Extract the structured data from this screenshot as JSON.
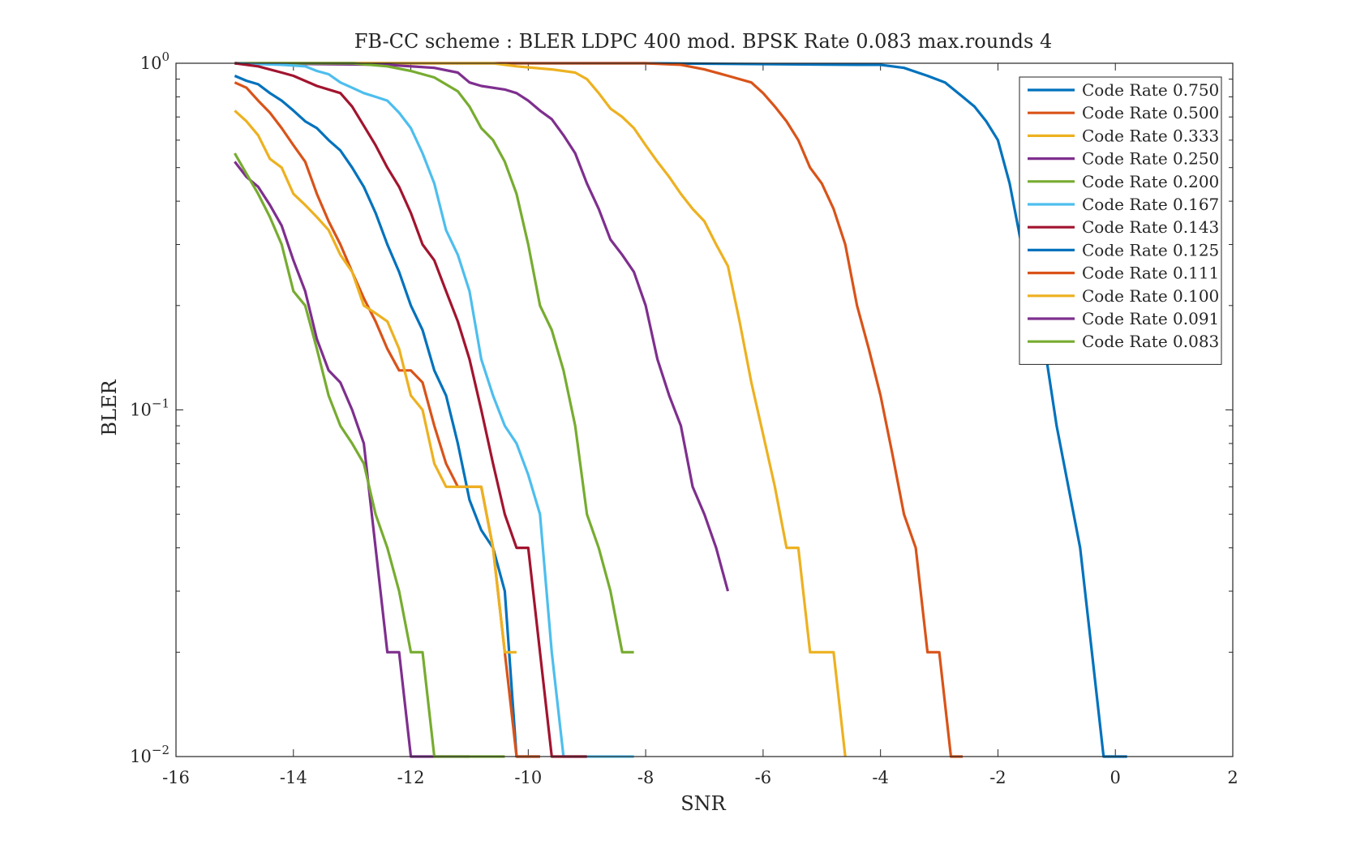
{
  "chart_data": {
    "type": "line",
    "title": "FB-CC scheme : BLER LDPC 400 mod. BPSK Rate 0.083 max.rounds 4",
    "xlabel": "SNR",
    "ylabel": "BLER",
    "xlim": [
      -16,
      2
    ],
    "ylim": [
      0.01,
      1
    ],
    "yscale": "log",
    "grid": false,
    "legend_position": "top-right",
    "xticks": [
      {
        "value": -16,
        "label": "-16"
      },
      {
        "value": -14,
        "label": "-14"
      },
      {
        "value": -12,
        "label": "-12"
      },
      {
        "value": -10,
        "label": "-10"
      },
      {
        "value": -8,
        "label": "-8"
      },
      {
        "value": -6,
        "label": "-6"
      },
      {
        "value": -4,
        "label": "-4"
      },
      {
        "value": -2,
        "label": "-2"
      },
      {
        "value": 0,
        "label": "0"
      },
      {
        "value": 2,
        "label": "2"
      }
    ],
    "yticks": [
      {
        "value": 1,
        "base": "10",
        "exp": "0"
      },
      {
        "value": 0.1,
        "base": "10",
        "exp": "−1"
      },
      {
        "value": 0.01,
        "base": "10",
        "exp": "−2"
      }
    ],
    "series": [
      {
        "name": "Code Rate 0.750",
        "color": "#0072BD",
        "x": [
          -15,
          -8,
          -4.4,
          -4,
          -3.6,
          -3.2,
          -2.9,
          -2.6,
          -2.4,
          -2.2,
          -2,
          -1.8,
          -1.6,
          -1.4,
          -1.2,
          -1,
          -0.8,
          -0.6,
          -0.4,
          -0.2,
          0,
          0.2
        ],
        "y": [
          1,
          1,
          0.99,
          0.99,
          0.97,
          0.92,
          0.88,
          0.8,
          0.75,
          0.68,
          0.6,
          0.45,
          0.3,
          0.2,
          0.15,
          0.09,
          0.06,
          0.04,
          0.02,
          0.01,
          0.01,
          0.01
        ]
      },
      {
        "name": "Code Rate 0.500",
        "color": "#D95319",
        "x": [
          -15,
          -8,
          -7.4,
          -7,
          -6.6,
          -6.2,
          -6,
          -5.8,
          -5.6,
          -5.4,
          -5.2,
          -5,
          -4.8,
          -4.6,
          -4.4,
          -4.2,
          -4,
          -3.8,
          -3.6,
          -3.4,
          -3.2,
          -3,
          -2.8,
          -2.6
        ],
        "y": [
          1,
          1,
          0.99,
          0.96,
          0.92,
          0.88,
          0.82,
          0.75,
          0.68,
          0.6,
          0.5,
          0.45,
          0.38,
          0.3,
          0.2,
          0.15,
          0.11,
          0.075,
          0.05,
          0.04,
          0.02,
          0.02,
          0.01,
          0.01
        ]
      },
      {
        "name": "Code Rate 0.333",
        "color": "#EDB120",
        "x": [
          -15,
          -10.6,
          -10.2,
          -9.6,
          -9.2,
          -9,
          -8.8,
          -8.6,
          -8.4,
          -8.2,
          -8,
          -7.8,
          -7.6,
          -7.4,
          -7.2,
          -7,
          -6.8,
          -6.6,
          -6.4,
          -6.2,
          -6,
          -5.8,
          -5.6,
          -5.4,
          -5.2,
          -5,
          -4.8,
          -4.6
        ],
        "y": [
          1,
          1,
          0.98,
          0.96,
          0.94,
          0.9,
          0.82,
          0.74,
          0.7,
          0.65,
          0.58,
          0.52,
          0.47,
          0.42,
          0.38,
          0.35,
          0.3,
          0.26,
          0.18,
          0.12,
          0.085,
          0.06,
          0.04,
          0.04,
          0.02,
          0.02,
          0.02,
          0.01
        ]
      },
      {
        "name": "Code Rate 0.250",
        "color": "#7E2F8E",
        "x": [
          -15,
          -12.4,
          -12,
          -11.6,
          -11.2,
          -11,
          -10.8,
          -10.4,
          -10.2,
          -10,
          -9.8,
          -9.6,
          -9.4,
          -9.2,
          -9,
          -8.8,
          -8.6,
          -8.4,
          -8.2,
          -8,
          -7.8,
          -7.6,
          -7.4,
          -7.2,
          -7,
          -6.8,
          -6.6
        ],
        "y": [
          1,
          0.99,
          0.98,
          0.97,
          0.94,
          0.88,
          0.86,
          0.84,
          0.82,
          0.78,
          0.73,
          0.69,
          0.62,
          0.55,
          0.45,
          0.38,
          0.31,
          0.28,
          0.25,
          0.2,
          0.14,
          0.11,
          0.09,
          0.06,
          0.05,
          0.04,
          0.03
        ]
      },
      {
        "name": "Code Rate 0.200",
        "color": "#77AC30",
        "x": [
          -15,
          -13,
          -12.4,
          -12,
          -11.6,
          -11.2,
          -11,
          -10.8,
          -10.6,
          -10.4,
          -10.2,
          -10,
          -9.8,
          -9.6,
          -9.4,
          -9.2,
          -9,
          -8.8,
          -8.6,
          -8.4,
          -8.2
        ],
        "y": [
          1,
          1,
          0.98,
          0.95,
          0.91,
          0.83,
          0.75,
          0.65,
          0.6,
          0.52,
          0.42,
          0.3,
          0.2,
          0.17,
          0.13,
          0.09,
          0.05,
          0.04,
          0.03,
          0.02,
          0.02
        ]
      },
      {
        "name": "Code Rate 0.167",
        "color": "#4DBEEE",
        "x": [
          -15,
          -14.2,
          -13.8,
          -13.6,
          -13.4,
          -13.2,
          -13,
          -12.8,
          -12.6,
          -12.4,
          -12.2,
          -12,
          -11.8,
          -11.6,
          -11.4,
          -11.2,
          -11,
          -10.8,
          -10.6,
          -10.4,
          -10.2,
          -10,
          -9.8,
          -9.6,
          -9.4,
          -9.2,
          -9,
          -8.8,
          -8.6,
          -8.4,
          -8.2
        ],
        "y": [
          1,
          0.99,
          0.98,
          0.95,
          0.93,
          0.88,
          0.85,
          0.82,
          0.8,
          0.78,
          0.72,
          0.65,
          0.55,
          0.45,
          0.33,
          0.28,
          0.22,
          0.14,
          0.11,
          0.09,
          0.08,
          0.065,
          0.05,
          0.02,
          0.01,
          0.01,
          0.01,
          0.01,
          0.01,
          0.01,
          0.01
        ]
      },
      {
        "name": "Code Rate 0.143",
        "color": "#A2142F",
        "x": [
          -15,
          -14.6,
          -14.2,
          -14,
          -13.6,
          -13.2,
          -13,
          -12.8,
          -12.6,
          -12.4,
          -12.2,
          -12,
          -11.8,
          -11.6,
          -11.4,
          -11.2,
          -11,
          -10.8,
          -10.6,
          -10.4,
          -10.2,
          -10,
          -9.8,
          -9.6,
          -9.4,
          -9.2,
          -9
        ],
        "y": [
          1,
          0.98,
          0.94,
          0.92,
          0.86,
          0.82,
          0.75,
          0.66,
          0.58,
          0.5,
          0.44,
          0.37,
          0.3,
          0.27,
          0.22,
          0.18,
          0.14,
          0.1,
          0.07,
          0.05,
          0.04,
          0.04,
          0.02,
          0.01,
          0.01,
          0.01,
          0.01
        ]
      },
      {
        "name": "Code Rate 0.125",
        "color": "#0072BD",
        "x": [
          -15,
          -14.8,
          -14.6,
          -14.4,
          -14.2,
          -14,
          -13.8,
          -13.6,
          -13.4,
          -13.2,
          -13,
          -12.8,
          -12.6,
          -12.4,
          -12.2,
          -12,
          -11.8,
          -11.6,
          -11.4,
          -11.2,
          -11,
          -10.8,
          -10.6,
          -10.4,
          -10.2,
          -10,
          -9.8
        ],
        "y": [
          0.92,
          0.89,
          0.87,
          0.82,
          0.78,
          0.73,
          0.68,
          0.65,
          0.6,
          0.56,
          0.5,
          0.44,
          0.37,
          0.3,
          0.25,
          0.2,
          0.17,
          0.13,
          0.11,
          0.08,
          0.055,
          0.045,
          0.04,
          0.03,
          0.01,
          0.01,
          0.01
        ]
      },
      {
        "name": "Code Rate 0.111",
        "color": "#D95319",
        "x": [
          -15,
          -14.8,
          -14.6,
          -14.4,
          -14.2,
          -14,
          -13.8,
          -13.6,
          -13.4,
          -13.2,
          -13,
          -12.8,
          -12.6,
          -12.4,
          -12.2,
          -12,
          -11.8,
          -11.6,
          -11.4,
          -11.2,
          -11,
          -10.8,
          -10.6,
          -10.4,
          -10.2,
          -10,
          -9.8
        ],
        "y": [
          0.88,
          0.85,
          0.78,
          0.72,
          0.65,
          0.58,
          0.52,
          0.42,
          0.35,
          0.3,
          0.25,
          0.21,
          0.18,
          0.15,
          0.13,
          0.13,
          0.12,
          0.09,
          0.07,
          0.06,
          0.06,
          0.06,
          0.04,
          0.02,
          0.01,
          0.01,
          0.01
        ]
      },
      {
        "name": "Code Rate 0.100",
        "color": "#EDB120",
        "x": [
          -15,
          -14.8,
          -14.6,
          -14.4,
          -14.2,
          -14,
          -13.8,
          -13.6,
          -13.4,
          -13.2,
          -13,
          -12.8,
          -12.6,
          -12.4,
          -12.2,
          -12,
          -11.8,
          -11.6,
          -11.4,
          -11.2,
          -11,
          -10.8,
          -10.6,
          -10.4,
          -10.2
        ],
        "y": [
          0.73,
          0.68,
          0.62,
          0.53,
          0.5,
          0.42,
          0.39,
          0.36,
          0.33,
          0.28,
          0.25,
          0.2,
          0.19,
          0.18,
          0.15,
          0.11,
          0.1,
          0.07,
          0.06,
          0.06,
          0.06,
          0.06,
          0.04,
          0.02,
          0.02
        ]
      },
      {
        "name": "Code Rate 0.091",
        "color": "#7E2F8E",
        "x": [
          -15,
          -14.8,
          -14.6,
          -14.4,
          -14.2,
          -14,
          -13.8,
          -13.6,
          -13.4,
          -13.2,
          -13,
          -12.8,
          -12.6,
          -12.4,
          -12.2,
          -12,
          -11.8,
          -11.6,
          -11.4,
          -11.2,
          -11
        ],
        "y": [
          0.52,
          0.47,
          0.44,
          0.39,
          0.34,
          0.27,
          0.22,
          0.16,
          0.13,
          0.12,
          0.1,
          0.08,
          0.04,
          0.02,
          0.02,
          0.01,
          0.01,
          0.01,
          0.01,
          0.01,
          0.01
        ]
      },
      {
        "name": "Code Rate 0.083",
        "color": "#77AC30",
        "x": [
          -15,
          -14.8,
          -14.6,
          -14.4,
          -14.2,
          -14,
          -13.8,
          -13.6,
          -13.4,
          -13.2,
          -13,
          -12.8,
          -12.6,
          -12.4,
          -12.2,
          -12,
          -11.8,
          -11.6,
          -11.4,
          -11.2,
          -11,
          -10.8,
          -10.6,
          -10.4
        ],
        "y": [
          0.55,
          0.48,
          0.42,
          0.36,
          0.3,
          0.22,
          0.2,
          0.15,
          0.11,
          0.09,
          0.08,
          0.07,
          0.05,
          0.04,
          0.03,
          0.02,
          0.02,
          0.01,
          0.01,
          0.01,
          0.01,
          0.01,
          0.01,
          0.01
        ]
      }
    ]
  }
}
